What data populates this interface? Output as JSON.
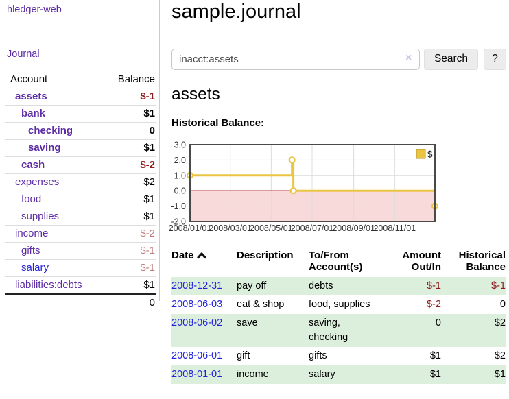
{
  "sidebar": {
    "brand": "hledger-web",
    "nav": {
      "journal": "Journal"
    },
    "table_header": {
      "account": "Account",
      "balance": "Balance"
    },
    "accounts": [
      {
        "name": "assets",
        "balance": "$-1",
        "level": 1,
        "bold": true,
        "blue": false
      },
      {
        "name": "bank",
        "balance": "$1",
        "level": 2,
        "bold": true,
        "blue": false
      },
      {
        "name": "checking",
        "balance": "0",
        "level": 3,
        "bold": true,
        "blue": false
      },
      {
        "name": "saving",
        "balance": "$1",
        "level": 3,
        "bold": true,
        "blue": false
      },
      {
        "name": "cash",
        "balance": "$-2",
        "level": 2,
        "bold": true,
        "blue": false
      },
      {
        "name": "expenses",
        "balance": "$2",
        "level": 1,
        "bold": false,
        "blue": false
      },
      {
        "name": "food",
        "balance": "$1",
        "level": 2,
        "bold": false,
        "blue": false
      },
      {
        "name": "supplies",
        "balance": "$1",
        "level": 2,
        "bold": false,
        "blue": false
      },
      {
        "name": "income",
        "balance": "$-2",
        "level": 1,
        "bold": false,
        "blue": false
      },
      {
        "name": "gifts",
        "balance": "$-1",
        "level": 2,
        "bold": false,
        "blue": false
      },
      {
        "name": "salary",
        "balance": "$-1",
        "level": 2,
        "bold": false,
        "blue": true
      },
      {
        "name": "liabilities:debts",
        "balance": "$1",
        "level": 1,
        "bold": false,
        "blue": false
      }
    ],
    "total": "0"
  },
  "main": {
    "title": "sample.journal",
    "search": {
      "value": "inacct:assets",
      "clear_icon": "×",
      "button_label": "Search",
      "help_label": "?"
    },
    "account_heading": "assets",
    "chart_label": "Historical Balance:"
  },
  "chart_data": {
    "type": "line",
    "step": true,
    "title": "Historical Balance:",
    "series": [
      {
        "name": "$",
        "color": "#eac443",
        "points": [
          [
            "2008-01-01",
            1.0
          ],
          [
            "2008-06-01",
            2.0
          ],
          [
            "2008-06-03",
            0.0
          ],
          [
            "2008-12-31",
            -1.0
          ]
        ]
      }
    ],
    "xrange": [
      "2008-01-01",
      "2008-12-31"
    ],
    "ylim": [
      -2.0,
      3.0
    ],
    "yticks": [
      "3.0",
      "2.0",
      "1.0",
      "0.0",
      "-1.0",
      "-2.0"
    ],
    "xticks": [
      "2008/01/01",
      "2008/03/01",
      "2008/05/01",
      "2008/07/01",
      "2008/09/01",
      "2008/11/01"
    ],
    "legend_label": "$",
    "legend_position": "top-right",
    "grid": true,
    "negative_region_fill": "#f9dada",
    "zero_line_color": "#a00000",
    "border_color": "#4a4a4a",
    "grid_color": "#dcdcdc"
  },
  "register": {
    "columns": [
      "Date",
      "Description",
      "To/From Account(s)",
      "Amount Out/In",
      "Historical Balance"
    ],
    "sort": {
      "column": "Date",
      "direction": "asc"
    },
    "rows": [
      {
        "date": "2008-12-31",
        "description": "pay off",
        "accounts": "debts",
        "amount": "$-1",
        "balance": "$-1"
      },
      {
        "date": "2008-06-03",
        "description": "eat & shop",
        "accounts": "food, supplies",
        "amount": "$-2",
        "balance": "0"
      },
      {
        "date": "2008-06-02",
        "description": "save",
        "accounts": "saving,\nchecking",
        "amount": "0",
        "balance": "$2"
      },
      {
        "date": "2008-06-01",
        "description": "gift",
        "accounts": "gifts",
        "amount": "$1",
        "balance": "$2"
      },
      {
        "date": "2008-01-01",
        "description": "income",
        "accounts": "salary",
        "amount": "$1",
        "balance": "$1"
      }
    ]
  }
}
